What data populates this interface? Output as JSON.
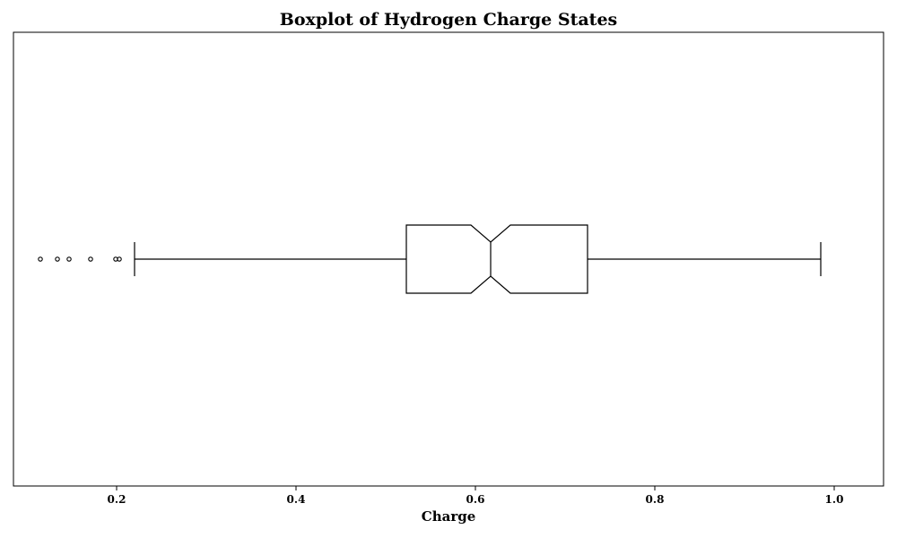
{
  "chart_data": {
    "type": "boxplot",
    "title": "Boxplot of Hydrogen Charge States",
    "xlabel": "Charge",
    "ylabel": "",
    "orientation": "horizontal",
    "notched": true,
    "xlim": [
      0.085,
      1.055
    ],
    "x_ticks": [
      0.2,
      0.4,
      0.6,
      0.8,
      1.0
    ],
    "x_tick_labels": [
      "0.2",
      "0.4",
      "0.6",
      "0.8",
      "1.0"
    ],
    "grid": false,
    "box": {
      "whisker_low": 0.22,
      "q1": 0.523,
      "median": 0.617,
      "q3": 0.725,
      "whisker_high": 0.985,
      "notch_low": 0.595,
      "notch_high": 0.639
    },
    "outliers": [
      0.115,
      0.134,
      0.147,
      0.171,
      0.199,
      0.203
    ],
    "colors": {
      "line": "#000000",
      "background": "#ffffff"
    }
  }
}
